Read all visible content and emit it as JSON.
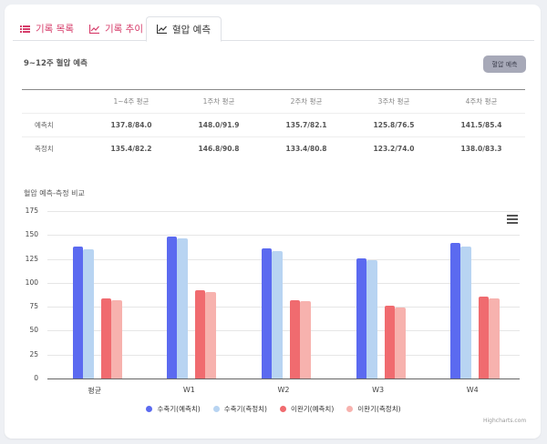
{
  "tabs": [
    {
      "label": "기록 목록",
      "icon": "list-icon",
      "active": false
    },
    {
      "label": "기록 추이",
      "icon": "line-chart-icon",
      "active": false
    },
    {
      "label": "혈압 예측",
      "icon": "line-chart-icon",
      "active": true
    }
  ],
  "prediction": {
    "title": "9~12주 혈압 예측",
    "button_label": "혈압 예측"
  },
  "table": {
    "columns": [
      "",
      "1~4주 평균",
      "1주차 평균",
      "2주차 평균",
      "3주차 평균",
      "4주차 평균"
    ],
    "rows": [
      {
        "label": "예측치",
        "values": [
          "137.8/84.0",
          "148.0/91.9",
          "135.7/82.1",
          "125.8/76.5",
          "141.5/85.4"
        ]
      },
      {
        "label": "측정치",
        "values": [
          "135.4/82.2",
          "146.8/90.8",
          "133.4/80.8",
          "123.2/74.0",
          "138.0/83.3"
        ]
      }
    ]
  },
  "chart_data": {
    "type": "bar",
    "title": "혈압 예측-측정 비교",
    "categories": [
      "평균",
      "W1",
      "W2",
      "W3",
      "W4"
    ],
    "series": [
      {
        "name": "수축기(예측치)",
        "color": "#5b6af0",
        "values": [
          137.8,
          148.0,
          135.7,
          125.8,
          141.5
        ]
      },
      {
        "name": "수축기(측정치)",
        "color": "#b8d4f2",
        "values": [
          135.4,
          146.8,
          133.4,
          123.2,
          138.0
        ]
      },
      {
        "name": "이완기(예측치)",
        "color": "#f06b6f",
        "values": [
          84.0,
          91.9,
          82.1,
          76.5,
          85.4
        ]
      },
      {
        "name": "이완기(측정치)",
        "color": "#f7b2ae",
        "values": [
          82.2,
          90.8,
          80.8,
          74.0,
          83.3
        ]
      }
    ],
    "yticks": [
      0,
      25,
      50,
      75,
      100,
      125,
      150,
      175
    ],
    "ylim": [
      0,
      175
    ],
    "xlabel": "",
    "ylabel": "",
    "grid": true,
    "legend_position": "bottom"
  },
  "chart_ui": {
    "menu_icon": "hamburger-menu-icon",
    "credits": "Highcharts.com"
  }
}
